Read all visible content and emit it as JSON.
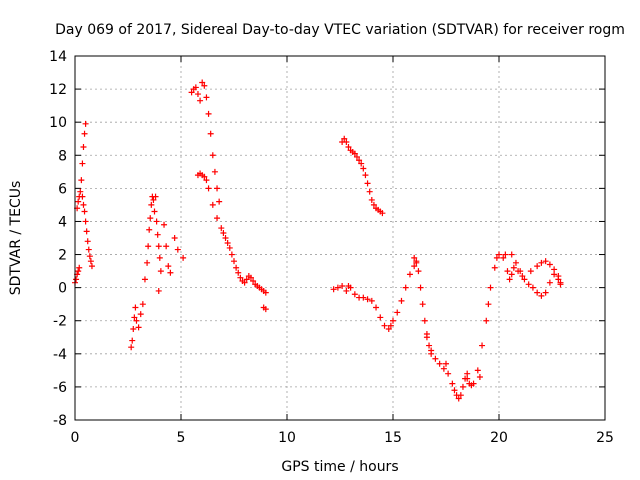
{
  "chart_data": {
    "type": "scatter",
    "title": "Day 069 of 2017, Sidereal Day-to-day VTEC variation (SDTVAR) for receiver rogm",
    "xlabel": "GPS time / hours",
    "ylabel": "SDTVAR / TECUs",
    "xlim": [
      0,
      25
    ],
    "ylim": [
      -8,
      14
    ],
    "xticks": [
      0,
      5,
      10,
      15,
      20,
      25
    ],
    "yticks": [
      -8,
      -6,
      -4,
      -2,
      0,
      2,
      4,
      6,
      8,
      10,
      12,
      14
    ],
    "grid": true,
    "marker": "plus",
    "color": "#ff0000",
    "series": [
      {
        "name": "seg1",
        "points": [
          [
            0.0,
            0.3
          ],
          [
            0.05,
            0.5
          ],
          [
            0.1,
            0.8
          ],
          [
            0.15,
            1.0
          ],
          [
            0.2,
            1.2
          ],
          [
            0.1,
            4.8
          ],
          [
            0.15,
            5.2
          ],
          [
            0.2,
            5.5
          ],
          [
            0.25,
            5.8
          ],
          [
            0.3,
            6.5
          ],
          [
            0.35,
            7.5
          ],
          [
            0.4,
            8.5
          ],
          [
            0.45,
            9.3
          ],
          [
            0.5,
            9.9
          ],
          [
            0.35,
            5.5
          ],
          [
            0.4,
            5.0
          ],
          [
            0.45,
            4.6
          ],
          [
            0.5,
            4.0
          ],
          [
            0.55,
            3.4
          ],
          [
            0.6,
            2.8
          ],
          [
            0.65,
            2.3
          ],
          [
            0.7,
            1.9
          ],
          [
            0.75,
            1.6
          ],
          [
            0.8,
            1.3
          ]
        ]
      },
      {
        "name": "seg2",
        "points": [
          [
            2.65,
            -3.6
          ],
          [
            2.7,
            -3.2
          ],
          [
            2.75,
            -2.5
          ],
          [
            2.8,
            -1.8
          ],
          [
            2.85,
            -1.2
          ],
          [
            2.9,
            -2.0
          ],
          [
            3.0,
            -2.4
          ],
          [
            3.1,
            -1.6
          ],
          [
            3.2,
            -1.0
          ],
          [
            3.3,
            0.5
          ],
          [
            3.4,
            1.5
          ],
          [
            3.45,
            2.5
          ],
          [
            3.5,
            3.5
          ],
          [
            3.55,
            4.2
          ],
          [
            3.6,
            5.0
          ],
          [
            3.65,
            5.5
          ],
          [
            3.7,
            5.3
          ],
          [
            3.75,
            4.6
          ],
          [
            3.8,
            5.5
          ],
          [
            3.85,
            4.0
          ],
          [
            3.9,
            3.2
          ],
          [
            3.95,
            2.5
          ],
          [
            4.0,
            1.8
          ],
          [
            4.05,
            1.0
          ],
          [
            3.95,
            -0.2
          ],
          [
            4.2,
            3.8
          ],
          [
            4.3,
            2.5
          ],
          [
            4.4,
            1.3
          ],
          [
            4.5,
            0.9
          ],
          [
            4.7,
            3.0
          ],
          [
            4.85,
            2.3
          ],
          [
            5.1,
            1.8
          ]
        ]
      },
      {
        "name": "seg3",
        "points": [
          [
            5.5,
            11.8
          ],
          [
            5.6,
            12.0
          ],
          [
            5.7,
            12.1
          ],
          [
            5.8,
            11.7
          ],
          [
            5.9,
            11.3
          ],
          [
            6.0,
            12.4
          ],
          [
            6.1,
            12.2
          ],
          [
            6.2,
            11.5
          ],
          [
            6.3,
            10.5
          ],
          [
            6.4,
            9.3
          ],
          [
            6.5,
            8.0
          ],
          [
            6.6,
            7.0
          ],
          [
            6.7,
            6.0
          ],
          [
            6.8,
            5.2
          ],
          [
            5.8,
            6.8
          ],
          [
            5.9,
            6.9
          ],
          [
            6.0,
            6.8
          ],
          [
            6.1,
            6.7
          ],
          [
            6.2,
            6.5
          ],
          [
            6.3,
            6.0
          ],
          [
            6.5,
            5.0
          ],
          [
            6.7,
            4.2
          ],
          [
            6.9,
            3.6
          ],
          [
            7.0,
            3.3
          ],
          [
            7.1,
            3.0
          ],
          [
            7.2,
            2.7
          ],
          [
            7.3,
            2.4
          ],
          [
            7.4,
            2.0
          ],
          [
            7.5,
            1.6
          ],
          [
            7.6,
            1.2
          ],
          [
            7.7,
            0.9
          ],
          [
            7.8,
            0.6
          ],
          [
            7.9,
            0.4
          ],
          [
            8.0,
            0.3
          ],
          [
            8.1,
            0.5
          ],
          [
            8.2,
            0.7
          ],
          [
            8.3,
            0.6
          ],
          [
            8.4,
            0.4
          ],
          [
            8.5,
            0.2
          ],
          [
            8.6,
            0.1
          ],
          [
            8.7,
            0.0
          ],
          [
            8.8,
            -0.1
          ],
          [
            8.9,
            -0.2
          ],
          [
            9.0,
            -0.3
          ],
          [
            8.9,
            -1.2
          ],
          [
            9.0,
            -1.3
          ]
        ]
      },
      {
        "name": "seg4",
        "points": [
          [
            12.6,
            8.8
          ],
          [
            12.7,
            9.0
          ],
          [
            12.8,
            8.8
          ],
          [
            12.9,
            8.5
          ],
          [
            13.0,
            8.3
          ],
          [
            13.1,
            8.2
          ],
          [
            13.2,
            8.1
          ],
          [
            13.3,
            7.9
          ],
          [
            13.4,
            7.7
          ],
          [
            13.5,
            7.5
          ],
          [
            13.6,
            7.2
          ],
          [
            13.7,
            6.8
          ],
          [
            13.8,
            6.3
          ],
          [
            13.9,
            5.8
          ],
          [
            14.0,
            5.3
          ],
          [
            14.1,
            5.0
          ],
          [
            14.2,
            4.8
          ],
          [
            14.3,
            4.7
          ],
          [
            14.4,
            4.6
          ],
          [
            14.5,
            4.5
          ]
        ]
      },
      {
        "name": "seg5",
        "points": [
          [
            12.2,
            -0.1
          ],
          [
            12.4,
            0.0
          ],
          [
            12.6,
            0.1
          ],
          [
            12.8,
            -0.2
          ],
          [
            12.9,
            0.1
          ],
          [
            13.0,
            0.0
          ],
          [
            13.2,
            -0.4
          ],
          [
            13.4,
            -0.6
          ],
          [
            13.6,
            -0.6
          ],
          [
            13.8,
            -0.7
          ],
          [
            14.0,
            -0.8
          ],
          [
            14.2,
            -1.2
          ],
          [
            14.4,
            -1.8
          ],
          [
            14.6,
            -2.3
          ],
          [
            14.8,
            -2.5
          ],
          [
            14.9,
            -2.3
          ],
          [
            15.0,
            -2.0
          ],
          [
            15.2,
            -1.5
          ],
          [
            15.4,
            -0.8
          ],
          [
            15.6,
            0.0
          ],
          [
            15.8,
            0.8
          ],
          [
            16.0,
            1.3
          ],
          [
            16.1,
            1.6
          ],
          [
            16.2,
            1.0
          ],
          [
            16.3,
            0.0
          ],
          [
            16.4,
            -1.0
          ],
          [
            16.5,
            -2.0
          ],
          [
            16.6,
            -2.8
          ],
          [
            16.7,
            -3.5
          ],
          [
            16.8,
            -4.0
          ],
          [
            17.0,
            -4.3
          ],
          [
            17.2,
            -4.6
          ],
          [
            17.4,
            -4.9
          ],
          [
            17.6,
            -5.2
          ],
          [
            17.8,
            -5.8
          ],
          [
            17.9,
            -6.2
          ],
          [
            18.0,
            -6.5
          ],
          [
            18.1,
            -6.7
          ],
          [
            18.2,
            -6.5
          ],
          [
            18.3,
            -6.0
          ],
          [
            18.4,
            -5.5
          ],
          [
            18.5,
            -5.5
          ],
          [
            18.6,
            -5.8
          ],
          [
            18.7,
            -5.9
          ],
          [
            18.8,
            -5.8
          ],
          [
            19.0,
            -5.0
          ],
          [
            19.2,
            -3.5
          ],
          [
            19.4,
            -2.0
          ],
          [
            19.5,
            -1.0
          ],
          [
            19.6,
            0.0
          ],
          [
            19.8,
            1.2
          ],
          [
            19.9,
            1.8
          ],
          [
            20.0,
            2.0
          ],
          [
            20.2,
            1.8
          ],
          [
            20.4,
            1.0
          ],
          [
            20.5,
            0.5
          ],
          [
            20.6,
            0.8
          ],
          [
            20.7,
            1.2
          ],
          [
            20.8,
            1.5
          ],
          [
            21.0,
            1.0
          ],
          [
            21.2,
            0.5
          ],
          [
            21.4,
            0.2
          ],
          [
            21.6,
            0.0
          ],
          [
            21.8,
            -0.3
          ],
          [
            22.0,
            -0.5
          ],
          [
            22.2,
            -0.3
          ],
          [
            22.4,
            0.3
          ],
          [
            22.6,
            0.8
          ],
          [
            22.8,
            0.7
          ],
          [
            22.9,
            0.3
          ]
        ]
      },
      {
        "name": "seg6",
        "points": [
          [
            16.0,
            1.8
          ],
          [
            16.1,
            1.5
          ],
          [
            16.6,
            -3.0
          ],
          [
            16.8,
            -3.8
          ],
          [
            17.5,
            -4.6
          ],
          [
            18.5,
            -5.2
          ],
          [
            19.1,
            -5.4
          ],
          [
            20.3,
            2.0
          ],
          [
            20.6,
            2.0
          ],
          [
            20.9,
            1.0
          ],
          [
            21.1,
            0.7
          ],
          [
            21.5,
            1.0
          ],
          [
            21.8,
            1.3
          ],
          [
            22.0,
            1.5
          ],
          [
            22.2,
            1.6
          ],
          [
            22.4,
            1.4
          ],
          [
            22.6,
            1.1
          ],
          [
            22.8,
            0.5
          ],
          [
            22.9,
            0.2
          ]
        ]
      }
    ]
  }
}
